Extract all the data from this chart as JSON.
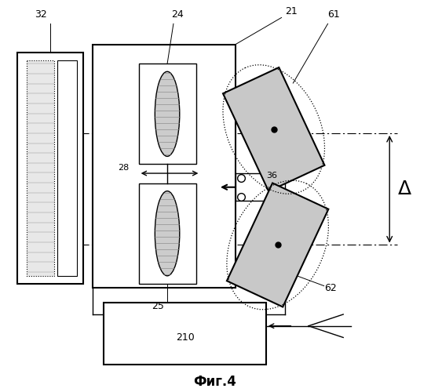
{
  "title": "Фиг.4",
  "background_color": "#ffffff",
  "fig_width": 5.49,
  "fig_height": 5.0,
  "dpi": 100,
  "black": "#000000",
  "gray_fill": "#cccccc",
  "dot_fill": "#d0d0d0"
}
